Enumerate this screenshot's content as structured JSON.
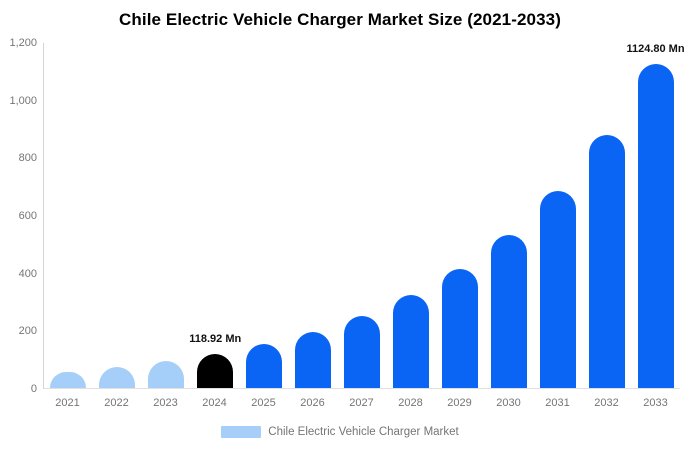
{
  "chart_data": {
    "type": "bar",
    "title": "Chile Electric Vehicle Charger Market Size (2021-2033)",
    "xlabel": "",
    "ylabel": "",
    "ylim": [
      0,
      1200
    ],
    "grid": false,
    "legend_position": "bottom-center",
    "yticks": [
      {
        "value": 0,
        "label": "0"
      },
      {
        "value": 200,
        "label": "200"
      },
      {
        "value": 400,
        "label": "400"
      },
      {
        "value": 600,
        "label": "600"
      },
      {
        "value": 800,
        "label": "800"
      },
      {
        "value": 1000,
        "label": "1,000"
      },
      {
        "value": 1200,
        "label": "1,200"
      }
    ],
    "colors": {
      "light": "#A5CEF9",
      "black": "#000000",
      "blue": "#0A65F4",
      "axis_line": "#D4D4D4",
      "baseline": "#E0E0E0",
      "tick_text": "#757575",
      "title_text": "#000000",
      "value_label_text": "#111111"
    },
    "legend": {
      "label": "Chile Electric Vehicle Charger Market",
      "swatch_color_key": "light"
    },
    "points": [
      {
        "year": "2021",
        "value": 56.23,
        "color": "light"
      },
      {
        "year": "2022",
        "value": 72.18,
        "color": "light"
      },
      {
        "year": "2023",
        "value": 92.65,
        "color": "light"
      },
      {
        "year": "2024",
        "value": 118.92,
        "color": "black",
        "label": "118.92 Mn"
      },
      {
        "year": "2025",
        "value": 152.64,
        "color": "blue"
      },
      {
        "year": "2026",
        "value": 195.93,
        "color": "blue"
      },
      {
        "year": "2027",
        "value": 251.5,
        "color": "blue"
      },
      {
        "year": "2028",
        "value": 322.83,
        "color": "blue"
      },
      {
        "year": "2029",
        "value": 414.38,
        "color": "blue"
      },
      {
        "year": "2030",
        "value": 531.9,
        "color": "blue"
      },
      {
        "year": "2031",
        "value": 682.75,
        "color": "blue"
      },
      {
        "year": "2032",
        "value": 876.38,
        "color": "blue"
      },
      {
        "year": "2033",
        "value": 1124.8,
        "color": "blue",
        "label": "1124.80 Mn"
      }
    ]
  }
}
